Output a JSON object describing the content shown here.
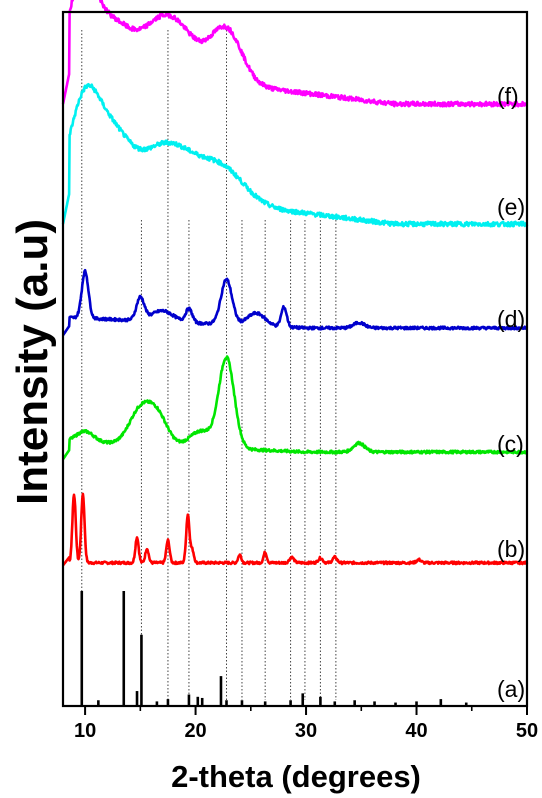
{
  "chart_data": {
    "type": "line",
    "title": "",
    "xlabel": "2-theta (degrees)",
    "ylabel": "Intensity (a.u)",
    "xlim": [
      8,
      50
    ],
    "x_ticks": [
      "10",
      "20",
      "30",
      "40",
      "50"
    ],
    "y_ticks_shown": false,
    "grid": false,
    "legend": "none",
    "reference_lines_2theta": [
      9.7,
      15.1,
      17.5,
      19.4,
      22.8,
      24.2,
      26.3,
      28.6,
      29.9,
      31.3,
      32.7
    ],
    "series": [
      {
        "name": "(a)",
        "color": "#000000",
        "style": "stick",
        "positions": [
          9.7,
          11.2,
          13.5,
          14.7,
          15.1,
          16.5,
          17.5,
          19.4,
          20.2,
          20.6,
          22.3,
          22.8,
          24.2,
          26.3,
          28.6,
          29.7,
          31.3,
          32.6,
          34.4,
          36.2,
          38.1,
          40.0,
          42.2,
          44.5
        ],
        "relative_intensity": [
          1.0,
          0.05,
          1.0,
          0.13,
          0.62,
          0.04,
          0.06,
          0.1,
          0.08,
          0.07,
          0.26,
          0.05,
          0.05,
          0.04,
          0.05,
          0.11,
          0.08,
          0.04,
          0.05,
          0.04,
          0.03,
          0.04,
          0.06,
          0.03
        ]
      },
      {
        "name": "(b)",
        "color": "#ff0000",
        "style": "line",
        "baseline": 0.04,
        "peaks": [
          {
            "x": 9.0,
            "height": 0.86,
            "width": 0.15
          },
          {
            "x": 9.8,
            "height": 0.86,
            "width": 0.15
          },
          {
            "x": 14.7,
            "height": 0.32,
            "width": 0.15
          },
          {
            "x": 15.6,
            "height": 0.18,
            "width": 0.15
          },
          {
            "x": 17.5,
            "height": 0.28,
            "width": 0.15
          },
          {
            "x": 19.3,
            "height": 0.6,
            "width": 0.15
          },
          {
            "x": 19.7,
            "height": 0.16,
            "width": 0.15
          },
          {
            "x": 24.0,
            "height": 0.1,
            "width": 0.15
          },
          {
            "x": 26.3,
            "height": 0.13,
            "width": 0.15
          },
          {
            "x": 28.7,
            "height": 0.07,
            "width": 0.2
          },
          {
            "x": 31.3,
            "height": 0.06,
            "width": 0.2
          },
          {
            "x": 32.6,
            "height": 0.07,
            "width": 0.2
          },
          {
            "x": 40.2,
            "height": 0.04,
            "width": 0.2
          }
        ]
      },
      {
        "name": "(c)",
        "color": "#00e600",
        "style": "line",
        "baseline": 0.1,
        "peaks": [
          {
            "x": 10.0,
            "height": 0.12,
            "width": 0.8
          },
          {
            "x": 15.0,
            "height": 0.38,
            "width": 1.0
          },
          {
            "x": 16.6,
            "height": 0.3,
            "width": 0.9
          },
          {
            "x": 20.5,
            "height": 0.18,
            "width": 1.0
          },
          {
            "x": 22.8,
            "height": 1.0,
            "width": 0.7
          },
          {
            "x": 34.8,
            "height": 0.1,
            "width": 0.5
          }
        ]
      },
      {
        "name": "(d)",
        "color": "#0000cc",
        "style": "line",
        "baseline": 0.1,
        "peaks": [
          {
            "x": 10.0,
            "height": 0.52,
            "width": 0.3
          },
          {
            "x": 15.0,
            "height": 0.25,
            "width": 0.35
          },
          {
            "x": 17.0,
            "height": 0.12,
            "width": 1.0
          },
          {
            "x": 19.4,
            "height": 0.15,
            "width": 0.3
          },
          {
            "x": 22.8,
            "height": 0.5,
            "width": 0.5
          },
          {
            "x": 25.5,
            "height": 0.14,
            "width": 0.8
          },
          {
            "x": 28.0,
            "height": 0.22,
            "width": 0.25
          },
          {
            "x": 34.8,
            "height": 0.06,
            "width": 0.5
          }
        ]
      },
      {
        "name": "(e)",
        "color": "#00f0f0",
        "style": "line",
        "baseline": 0.0,
        "peaks": [
          {
            "x": 10.0,
            "height": 0.95,
            "width": 1.3
          },
          {
            "x": 12.5,
            "height": 0.55,
            "width": 1.5
          },
          {
            "x": 17.5,
            "height": 0.58,
            "width": 2.5
          },
          {
            "x": 22.5,
            "height": 0.35,
            "width": 2.0
          }
        ]
      },
      {
        "name": "(f)",
        "color": "#ff00ff",
        "style": "line",
        "baseline": 0.0,
        "peaks": [
          {
            "x": 9.8,
            "height": 0.95,
            "width": 1.2
          },
          {
            "x": 12.5,
            "height": 0.45,
            "width": 1.5
          },
          {
            "x": 17.5,
            "height": 0.68,
            "width": 2.3
          },
          {
            "x": 22.8,
            "height": 0.58,
            "width": 1.4
          }
        ]
      }
    ]
  }
}
